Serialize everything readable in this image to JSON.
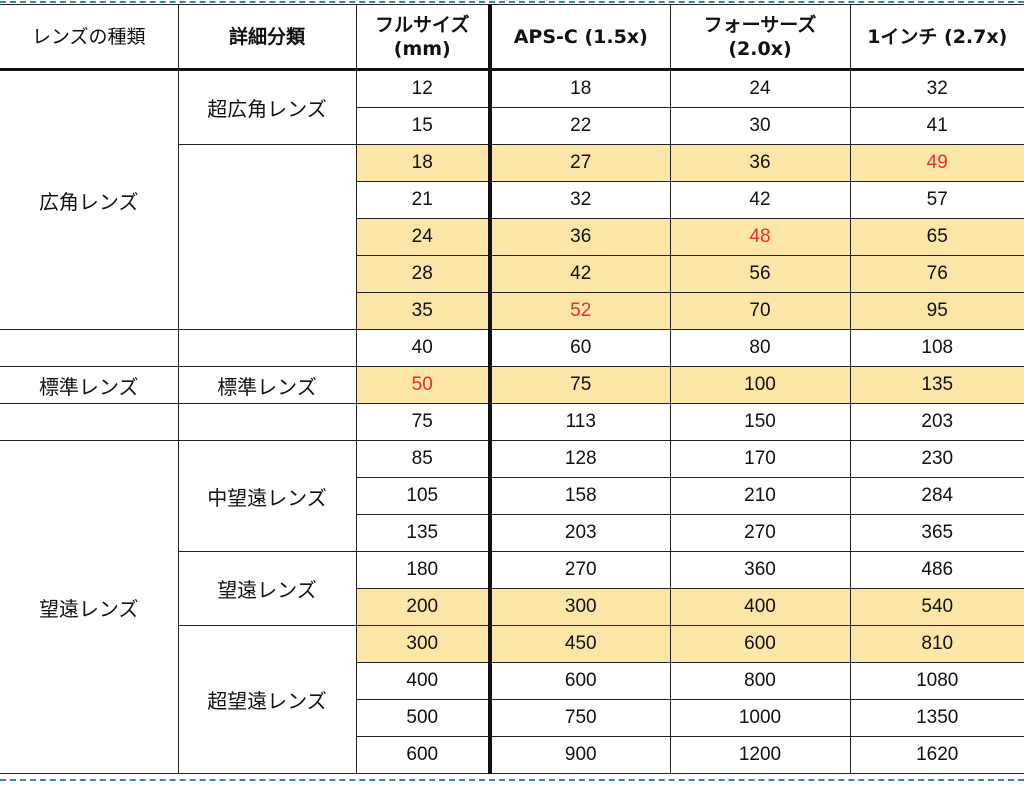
{
  "header": {
    "lens_type": "レンズの種類",
    "sub_type": "詳細分類",
    "full_frame_l1": "フルサイズ",
    "full_frame_l2": "(mm)",
    "apsc": "APS-C (1.5x)",
    "four_thirds_l1": "フォーサーズ",
    "four_thirds_l2": "(2.0x)",
    "one_inch": "1インチ (2.7x)"
  },
  "lens_types": {
    "wide": "広角レンズ",
    "standard": "標準レンズ",
    "tele": "望遠レンズ"
  },
  "sub_types": {
    "ultra_wide": "超広角レンズ",
    "standard": "標準レンズ",
    "mid_tele": "中望遠レンズ",
    "tele": "望遠レンズ",
    "super_tele": "超望遠レンズ"
  },
  "rows": [
    [
      "12",
      "18",
      "24",
      "32"
    ],
    [
      "15",
      "22",
      "30",
      "41"
    ],
    [
      "18",
      "27",
      "36",
      "49"
    ],
    [
      "21",
      "32",
      "42",
      "57"
    ],
    [
      "24",
      "36",
      "48",
      "65"
    ],
    [
      "28",
      "42",
      "56",
      "76"
    ],
    [
      "35",
      "52",
      "70",
      "95"
    ],
    [
      "40",
      "60",
      "80",
      "108"
    ],
    [
      "50",
      "75",
      "100",
      "135"
    ],
    [
      "75",
      "113",
      "150",
      "203"
    ],
    [
      "85",
      "128",
      "170",
      "230"
    ],
    [
      "105",
      "158",
      "210",
      "284"
    ],
    [
      "135",
      "203",
      "270",
      "365"
    ],
    [
      "180",
      "270",
      "360",
      "486"
    ],
    [
      "200",
      "300",
      "400",
      "540"
    ],
    [
      "300",
      "450",
      "600",
      "810"
    ],
    [
      "400",
      "600",
      "800",
      "1080"
    ],
    [
      "500",
      "750",
      "1000",
      "1350"
    ],
    [
      "600",
      "900",
      "1200",
      "1620"
    ]
  ],
  "highlighted_rows": [
    2,
    4,
    5,
    6,
    8,
    14,
    15
  ],
  "red_cells": [
    [
      2,
      3
    ],
    [
      4,
      2
    ],
    [
      6,
      1
    ],
    [
      8,
      0
    ]
  ],
  "colors": {
    "highlight": "#fbe5a7",
    "red_text": "#e8302c",
    "selection_border": "#3b82c4"
  }
}
